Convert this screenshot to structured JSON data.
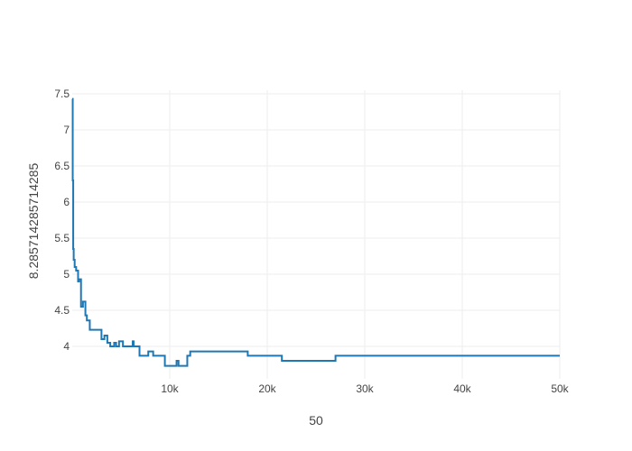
{
  "chart_data": {
    "type": "line",
    "title": "",
    "xlabel": "50",
    "ylabel": "8.285714285714285",
    "xlim": [
      0,
      50000
    ],
    "ylim": [
      3.55,
      7.55
    ],
    "grid": true,
    "x_ticks": [
      {
        "value": 10000,
        "label": "10k"
      },
      {
        "value": 20000,
        "label": "20k"
      },
      {
        "value": 30000,
        "label": "30k"
      },
      {
        "value": 40000,
        "label": "40k"
      },
      {
        "value": 50000,
        "label": "50k"
      }
    ],
    "y_ticks": [
      {
        "value": 4,
        "label": "4"
      },
      {
        "value": 4.5,
        "label": "4.5"
      },
      {
        "value": 5,
        "label": "5"
      },
      {
        "value": 5.5,
        "label": "5.5"
      },
      {
        "value": 6,
        "label": "6"
      },
      {
        "value": 6.5,
        "label": "6.5"
      },
      {
        "value": 7,
        "label": "7"
      },
      {
        "value": 7.5,
        "label": "7.5"
      }
    ],
    "series": [
      {
        "color": "#1f77b4",
        "shape": "hv",
        "x": [
          0,
          50,
          100,
          150,
          250,
          400,
          600,
          700,
          900,
          1100,
          1350,
          1500,
          1600,
          1800,
          2200,
          3000,
          3300,
          3600,
          3900,
          4300,
          4500,
          4800,
          5200,
          6200,
          6300,
          6700,
          6900,
          7800,
          8300,
          9000,
          9500,
          10500,
          10700,
          10900,
          11400,
          11800,
          12100,
          13000,
          18000,
          21000,
          21500,
          24000,
          27000,
          30000,
          50000
        ],
        "y": [
          7.43,
          6.3,
          5.35,
          5.2,
          5.1,
          5.05,
          4.9,
          4.93,
          4.55,
          4.62,
          4.43,
          4.36,
          4.36,
          4.23,
          4.23,
          4.1,
          4.15,
          4.05,
          4.0,
          4.05,
          4.0,
          4.07,
          4.0,
          4.07,
          4.0,
          4.0,
          3.87,
          3.93,
          3.87,
          3.87,
          3.73,
          3.73,
          3.8,
          3.73,
          3.73,
          3.87,
          3.93,
          3.93,
          3.87,
          3.87,
          3.8,
          3.8,
          3.87,
          3.87,
          3.87
        ]
      }
    ]
  }
}
